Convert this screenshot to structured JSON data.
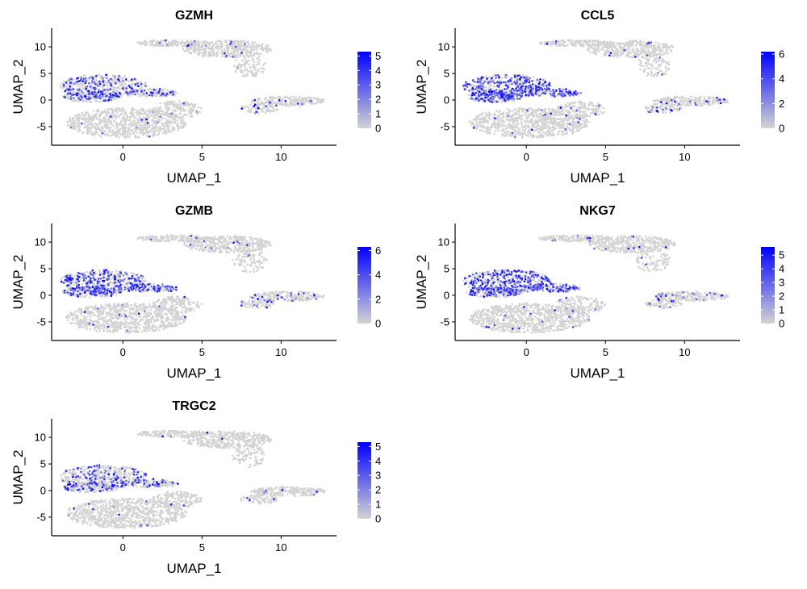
{
  "chart_data": [
    {
      "type": "scatter",
      "title": "GZMH",
      "xlabel": "UMAP_1",
      "ylabel": "UMAP_2",
      "xlim": [
        -4.5,
        13.5
      ],
      "ylim": [
        -8.5,
        13.5
      ],
      "xticks": [
        "0",
        "5",
        "10"
      ],
      "yticks": [
        "10",
        "5",
        "0",
        "-5"
      ],
      "xtick_values": [
        0,
        5,
        10
      ],
      "ytick_values": [
        10,
        5,
        0,
        -5
      ],
      "legend": {
        "placement": "right",
        "labels": [
          "5",
          "4",
          "3",
          "2",
          "1",
          "0"
        ],
        "values": [
          5,
          4,
          3,
          2,
          1,
          0
        ],
        "max": 5.3
      },
      "low_color": "#d3d3d3",
      "high_color": "#0000ff",
      "expression_level": 0.55
    },
    {
      "type": "scatter",
      "title": "CCL5",
      "xlabel": "UMAP_1",
      "ylabel": "UMAP_2",
      "xlim": [
        -4.5,
        13.5
      ],
      "ylim": [
        -8.5,
        13.5
      ],
      "xticks": [
        "0",
        "5",
        "10"
      ],
      "yticks": [
        "10",
        "5",
        "0",
        "-5"
      ],
      "xtick_values": [
        0,
        5,
        10
      ],
      "ytick_values": [
        10,
        5,
        0,
        -5
      ],
      "legend": {
        "placement": "right",
        "labels": [
          "6",
          "4",
          "2",
          "0"
        ],
        "values": [
          6,
          4,
          2,
          0
        ],
        "max": 6.2
      },
      "low_color": "#d3d3d3",
      "high_color": "#0000ff",
      "expression_level": 0.85
    },
    {
      "type": "scatter",
      "title": "GZMB",
      "xlabel": "UMAP_1",
      "ylabel": "UMAP_2",
      "xlim": [
        -4.5,
        13.5
      ],
      "ylim": [
        -8.5,
        13.5
      ],
      "xticks": [
        "0",
        "5",
        "10"
      ],
      "yticks": [
        "10",
        "5",
        "0",
        "-5"
      ],
      "xtick_values": [
        0,
        5,
        10
      ],
      "ytick_values": [
        10,
        5,
        0,
        -5
      ],
      "legend": {
        "placement": "right",
        "labels": [
          "6",
          "4",
          "2",
          "0"
        ],
        "values": [
          6,
          4,
          2,
          0
        ],
        "max": 6.3
      },
      "low_color": "#d3d3d3",
      "high_color": "#0000ff",
      "expression_level": 0.8
    },
    {
      "type": "scatter",
      "title": "NKG7",
      "xlabel": "UMAP_1",
      "ylabel": "UMAP_2",
      "xlim": [
        -4.5,
        13.5
      ],
      "ylim": [
        -8.5,
        13.5
      ],
      "xticks": [
        "0",
        "5",
        "10"
      ],
      "yticks": [
        "10",
        "5",
        "0",
        "-5"
      ],
      "xtick_values": [
        0,
        5,
        10
      ],
      "ytick_values": [
        10,
        5,
        0,
        -5
      ],
      "legend": {
        "placement": "right",
        "labels": [
          "5",
          "4",
          "3",
          "2",
          "1",
          "0"
        ],
        "values": [
          5,
          4,
          3,
          2,
          1,
          0
        ],
        "max": 5.6
      },
      "low_color": "#d3d3d3",
      "high_color": "#0000ff",
      "expression_level": 0.85
    },
    {
      "type": "scatter",
      "title": "TRGC2",
      "xlabel": "UMAP_1",
      "ylabel": "UMAP_2",
      "xlim": [
        -4.5,
        13.5
      ],
      "ylim": [
        -8.5,
        13.5
      ],
      "xticks": [
        "0",
        "5",
        "10"
      ],
      "yticks": [
        "10",
        "5",
        "0",
        "-5"
      ],
      "xtick_values": [
        0,
        5,
        10
      ],
      "ytick_values": [
        10,
        5,
        0,
        -5
      ],
      "legend": {
        "placement": "right",
        "labels": [
          "5",
          "4",
          "3",
          "2",
          "1",
          "0"
        ],
        "values": [
          5,
          4,
          3,
          2,
          1,
          0
        ],
        "max": 5.3
      },
      "low_color": "#d3d3d3",
      "high_color": "#0000ff",
      "expression_level": 0.4
    }
  ]
}
